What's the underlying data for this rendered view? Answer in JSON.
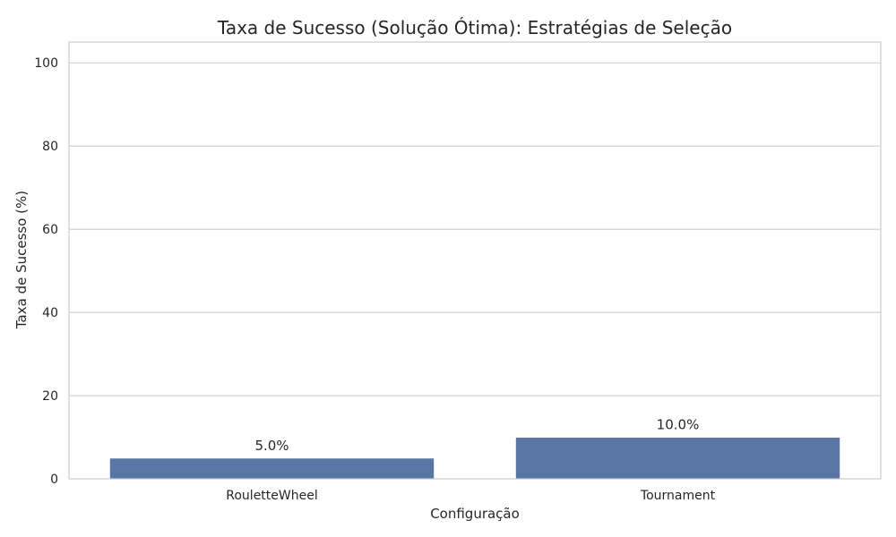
{
  "chart_data": {
    "type": "bar",
    "title": "Taxa de Sucesso (Solução Ótima): Estratégias de Seleção",
    "xlabel": "Configuração",
    "ylabel": "Taxa de Sucesso (%)",
    "categories": [
      "RouletteWheel",
      "Tournament"
    ],
    "values": [
      5.0,
      10.0
    ],
    "data_labels": [
      "5.0%",
      "10.0%"
    ],
    "ylim": [
      0,
      105
    ],
    "yticks": [
      0,
      20,
      40,
      60,
      80,
      100
    ],
    "grid": "horizontal",
    "bar_color": "#5975a4",
    "grid_color": "#cccccc",
    "frame_color": "#cccccc"
  }
}
